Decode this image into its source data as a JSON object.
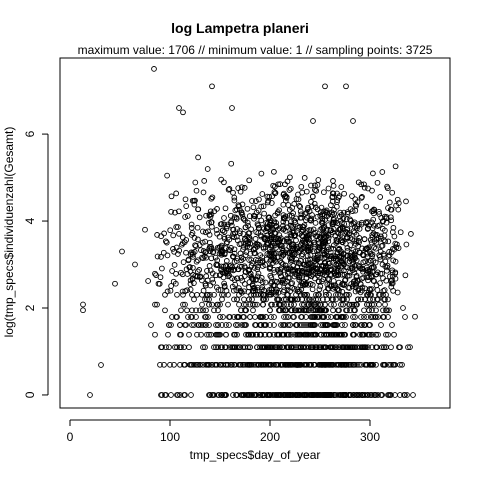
{
  "chart_data": {
    "type": "scatter",
    "title": "log Lampetra planeri",
    "subtitle": "maximum value: 1706  //  minimum value: 1  // sampling points: 3725",
    "xlabel": "tmp_specs$day_of_year",
    "ylabel": "log(tmp_specs$individuenzahl(Gesamt)",
    "xlim": [
      -10,
      380
    ],
    "ylim": [
      -0.3,
      7.75
    ],
    "xticks": [
      0,
      100,
      200,
      300
    ],
    "xtick_labels": [
      "0",
      "100",
      "200",
      "300"
    ],
    "yticks": [
      0,
      2,
      4,
      6
    ],
    "ytick_labels": [
      "0",
      "2",
      "4",
      "6"
    ],
    "grid": false,
    "legend": "none",
    "marker": "open-circle",
    "marker_color": "#000000",
    "x_range_main": [
      75,
      345
    ],
    "x_peak": 255,
    "sampling_points": 3725,
    "max_value": 1706,
    "min_value": 1,
    "discrete_levels": [
      0,
      0.693,
      1.099,
      1.386,
      1.609,
      1.792,
      1.946,
      2.079,
      2.197,
      2.303
    ],
    "points_outliers": [
      {
        "x": 20,
        "y": 0
      },
      {
        "x": 13,
        "y": 2.08
      },
      {
        "x": 13,
        "y": 1.95
      },
      {
        "x": 31,
        "y": 0.69
      },
      {
        "x": 45,
        "y": 2.56
      },
      {
        "x": 52,
        "y": 3.3
      },
      {
        "x": 65,
        "y": 3.0
      },
      {
        "x": 75,
        "y": 3.8
      },
      {
        "x": 84,
        "y": 7.5
      },
      {
        "x": 109,
        "y": 6.6
      },
      {
        "x": 113,
        "y": 6.5
      },
      {
        "x": 142,
        "y": 7.1
      },
      {
        "x": 162,
        "y": 6.6
      },
      {
        "x": 255,
        "y": 7.1
      },
      {
        "x": 276,
        "y": 7.1
      },
      {
        "x": 283,
        "y": 6.3
      },
      {
        "x": 243,
        "y": 6.3
      },
      {
        "x": 318,
        "y": 4.3
      },
      {
        "x": 333,
        "y": 2.0
      },
      {
        "x": 340,
        "y": 1.1
      },
      {
        "x": 345,
        "y": 1.8
      },
      {
        "x": 343,
        "y": 0
      },
      {
        "x": 302,
        "y": 4.7
      }
    ]
  }
}
